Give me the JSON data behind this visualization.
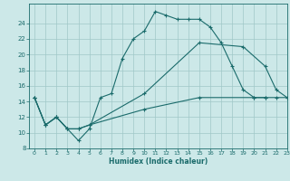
{
  "title": "",
  "xlabel": "Humidex (Indice chaleur)",
  "xlim": [
    -0.5,
    23
  ],
  "ylim": [
    8,
    26.5
  ],
  "yticks": [
    8,
    10,
    12,
    14,
    16,
    18,
    20,
    22,
    24
  ],
  "xticks": [
    0,
    1,
    2,
    3,
    4,
    5,
    6,
    7,
    8,
    9,
    10,
    11,
    12,
    13,
    14,
    15,
    16,
    17,
    18,
    19,
    20,
    21,
    22,
    23
  ],
  "bg_color": "#cce8e8",
  "grid_color": "#a0c8c8",
  "line_color": "#1a6b6b",
  "line1_x": [
    0,
    1,
    2,
    3,
    4,
    5,
    6,
    7,
    8,
    9,
    10,
    11,
    12,
    13,
    14,
    15,
    16,
    17,
    18,
    19,
    20,
    21
  ],
  "line1_y": [
    14.5,
    11,
    12,
    10.5,
    9,
    10.5,
    14.5,
    15,
    19.5,
    22,
    23,
    25.5,
    25,
    24.5,
    24.5,
    24.5,
    23.5,
    21.5,
    18.5,
    15.5,
    14.5,
    14.5
  ],
  "line2_x": [
    0,
    1,
    2,
    3,
    4,
    5,
    10,
    15,
    19,
    21,
    22,
    23
  ],
  "line2_y": [
    14.5,
    11,
    12,
    10.5,
    10.5,
    11,
    15,
    21.5,
    21,
    18.5,
    15.5,
    14.5
  ],
  "line3_x": [
    0,
    1,
    2,
    3,
    4,
    5,
    10,
    15,
    20,
    21,
    22,
    23
  ],
  "line3_y": [
    14.5,
    11,
    12,
    10.5,
    10.5,
    11,
    13,
    14.5,
    14.5,
    14.5,
    14.5,
    14.5
  ]
}
